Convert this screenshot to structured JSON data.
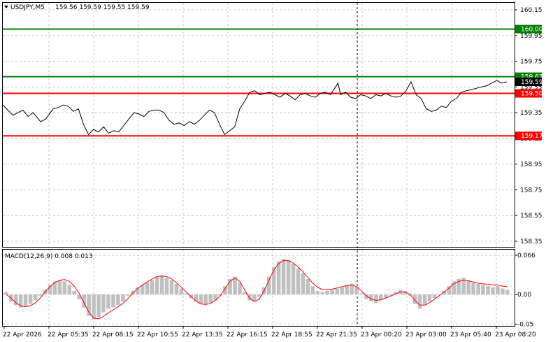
{
  "chart_data": [
    {
      "type": "line",
      "title": "USDJPY,M5",
      "ohlc": "159.56 159.59 159.55 159.59",
      "ylim": [
        158.3,
        160.2
      ],
      "y_ticks": [
        "160.15",
        "159.95",
        "159.75",
        "159.55",
        "159.35",
        "159.15",
        "158.95",
        "158.75",
        "158.55",
        "158.35"
      ],
      "y_tick_values": [
        160.15,
        159.95,
        159.75,
        159.55,
        159.35,
        159.15,
        158.95,
        158.75,
        158.55,
        158.35
      ],
      "x_ticks": [
        "22 Apr 2026",
        "22 Apr 05:35",
        "22 Apr 08:15",
        "22 Apr 10:55",
        "22 Apr 13:35",
        "22 Apr 16:15",
        "22 Apr 18:55",
        "22 Apr 21:35",
        "23 Apr 00:20",
        "23 Apr 03:00",
        "23 Apr 05:40",
        "23 Apr 08:20"
      ],
      "current_price": "159.59",
      "levels": [
        {
          "label": "160.00",
          "value": 160.0,
          "color": "#008000"
        },
        {
          "label": "159.63",
          "value": 159.63,
          "color": "#008000"
        },
        {
          "label": "159.50",
          "value": 159.5,
          "color": "#ff0000"
        },
        {
          "label": "159.17",
          "value": 159.17,
          "color": "#ff0000"
        }
      ],
      "grid": true,
      "series": [
        {
          "x": [
            0,
            0.02,
            0.04,
            0.05,
            0.06,
            0.075,
            0.085,
            0.1,
            0.11,
            0.12,
            0.13,
            0.14,
            0.15,
            0.16,
            0.17,
            0.18,
            0.19,
            0.2,
            0.21,
            0.22,
            0.23,
            0.24,
            0.25,
            0.26,
            0.27,
            0.28,
            0.29,
            0.3,
            0.31,
            0.32,
            0.33,
            0.34,
            0.35,
            0.36,
            0.37,
            0.38,
            0.39,
            0.4,
            0.41,
            0.42,
            0.43,
            0.44,
            0.45,
            0.46,
            0.47,
            0.48,
            0.49,
            0.5,
            0.51,
            0.52,
            0.53,
            0.54,
            0.55,
            0.56,
            0.57,
            0.58,
            0.59,
            0.6,
            0.61,
            0.62,
            0.63,
            0.64,
            0.65,
            0.655,
            0.66,
            0.665,
            0.67,
            0.68,
            0.69,
            0.7,
            0.71,
            0.72,
            0.73,
            0.74,
            0.75,
            0.76,
            0.77,
            0.78,
            0.79,
            0.8,
            0.81,
            0.82,
            0.83,
            0.84,
            0.85,
            0.86,
            0.87,
            0.88,
            0.89,
            0.9,
            0.91,
            0.92,
            0.93,
            0.94,
            0.95,
            0.96,
            0.97,
            0.98,
            0.99,
            1.0
          ],
          "values": [
            159.41,
            159.33,
            159.37,
            159.32,
            159.35,
            159.28,
            159.3,
            159.38,
            159.39,
            159.41,
            159.4,
            159.36,
            159.38,
            159.26,
            159.18,
            159.22,
            159.2,
            159.24,
            159.19,
            159.21,
            159.2,
            159.25,
            159.3,
            159.35,
            159.34,
            159.32,
            159.36,
            159.37,
            159.37,
            159.35,
            159.29,
            159.26,
            159.27,
            159.25,
            159.28,
            159.26,
            159.29,
            159.33,
            159.37,
            159.35,
            159.26,
            159.18,
            159.21,
            159.24,
            159.38,
            159.44,
            159.51,
            159.52,
            159.49,
            159.5,
            159.51,
            159.49,
            159.47,
            159.5,
            159.48,
            159.45,
            159.49,
            159.5,
            159.48,
            159.47,
            159.5,
            159.51,
            159.49,
            159.52,
            159.55,
            159.58,
            159.49,
            159.51,
            159.47,
            159.46,
            159.49,
            159.48,
            159.46,
            159.49,
            159.48,
            159.5,
            159.48,
            159.47,
            159.48,
            159.52,
            159.59,
            159.49,
            159.46,
            159.38,
            159.36,
            159.37,
            159.4,
            159.39,
            159.44,
            159.46,
            159.51,
            159.52,
            159.53,
            159.54,
            159.55,
            159.56,
            159.58,
            159.6,
            159.58,
            159.59
          ]
        }
      ]
    },
    {
      "type": "bar",
      "title": "MACD(12,26,9) 0.008 0.013",
      "ylim": [
        -0.05,
        0.066
      ],
      "y_ticks": [
        "0.066",
        "0.00",
        "-0.05"
      ],
      "y_tick_values": [
        0.066,
        0.0,
        -0.05
      ],
      "series": [
        {
          "name": "MACD",
          "color": "#c0c0c0",
          "values": [
            0.004,
            -0.012,
            -0.018,
            -0.022,
            -0.02,
            -0.016,
            -0.01,
            -0.002,
            0.008,
            0.016,
            0.022,
            0.024,
            0.022,
            0.016,
            0.006,
            -0.008,
            -0.022,
            -0.036,
            -0.042,
            -0.038,
            -0.03,
            -0.024,
            -0.022,
            -0.018,
            -0.012,
            -0.002,
            0.006,
            0.012,
            0.016,
            0.02,
            0.024,
            0.03,
            0.032,
            0.028,
            0.024,
            0.018,
            0.01,
            0.002,
            -0.006,
            -0.012,
            -0.016,
            -0.016,
            -0.014,
            -0.01,
            -0.002,
            0.014,
            0.026,
            0.03,
            0.02,
            0.004,
            -0.01,
            -0.012,
            -0.004,
            0.012,
            0.03,
            0.046,
            0.056,
            0.06,
            0.058,
            0.052,
            0.044,
            0.036,
            0.026,
            0.014,
            0.006,
            0.004,
            0.006,
            0.008,
            0.01,
            0.012,
            0.016,
            0.018,
            0.012,
            0.002,
            -0.008,
            -0.012,
            -0.014,
            -0.01,
            -0.006,
            -0.002,
            0.004,
            0.008,
            0.006,
            -0.002,
            -0.016,
            -0.024,
            -0.018,
            -0.012,
            -0.006,
            0.0,
            0.006,
            0.014,
            0.022,
            0.026,
            0.028,
            0.024,
            0.02,
            0.018,
            0.016,
            0.014,
            0.012,
            0.014,
            0.01,
            0.008
          ]
        },
        {
          "name": "Signal",
          "color": "#ff0000",
          "values": [
            0.0,
            -0.006,
            -0.014,
            -0.019,
            -0.021,
            -0.019,
            -0.014,
            -0.006,
            0.004,
            0.013,
            0.02,
            0.024,
            0.025,
            0.022,
            0.014,
            0.002,
            -0.014,
            -0.03,
            -0.04,
            -0.041,
            -0.037,
            -0.031,
            -0.026,
            -0.021,
            -0.015,
            -0.007,
            0.002,
            0.01,
            0.016,
            0.021,
            0.026,
            0.03,
            0.031,
            0.03,
            0.026,
            0.02,
            0.012,
            0.004,
            -0.004,
            -0.011,
            -0.016,
            -0.017,
            -0.015,
            -0.01,
            -0.002,
            0.01,
            0.022,
            0.028,
            0.022,
            0.008,
            -0.006,
            -0.012,
            -0.008,
            0.006,
            0.024,
            0.041,
            0.052,
            0.057,
            0.057,
            0.053,
            0.046,
            0.038,
            0.029,
            0.019,
            0.012,
            0.008,
            0.008,
            0.009,
            0.011,
            0.013,
            0.015,
            0.016,
            0.013,
            0.006,
            -0.002,
            -0.008,
            -0.01,
            -0.009,
            -0.006,
            -0.003,
            0.001,
            0.004,
            0.004,
            0.0,
            -0.01,
            -0.018,
            -0.018,
            -0.014,
            -0.008,
            -0.002,
            0.004,
            0.011,
            0.018,
            0.022,
            0.024,
            0.023,
            0.021,
            0.019,
            0.018,
            0.017,
            0.016,
            0.016,
            0.014,
            0.013
          ]
        }
      ]
    }
  ]
}
